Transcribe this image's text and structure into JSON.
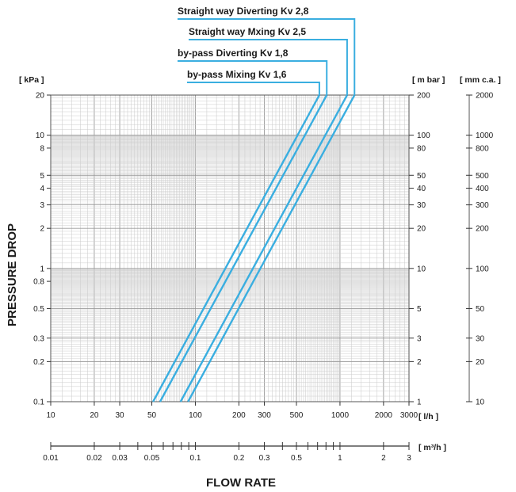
{
  "chart_data": {
    "type": "line",
    "xlabel": "FLOW RATE",
    "ylabel": "PRESSURE DROP",
    "x_scale": "log",
    "y_scale": "log",
    "xlim": [
      10,
      3000
    ],
    "ylim": [
      0.1,
      20
    ],
    "grid": true,
    "legend": "top-right",
    "units": {
      "left_axis": "[ kPa ]",
      "right_axis_1": "[ m bar ]",
      "right_axis_2": "[ mm c.a. ]",
      "x_axis_primary": "[ l/h ]",
      "x_axis_secondary": "[ m³/h ]"
    },
    "left_ticks": [
      "20",
      "10",
      "8",
      "5",
      "4",
      "3",
      "2",
      "1",
      "0.8",
      "0.5",
      "0.3",
      "0.2",
      "0.1"
    ],
    "left_tick_values": [
      20,
      10,
      8,
      5,
      4,
      3,
      2,
      1,
      0.8,
      0.5,
      0.3,
      0.2,
      0.1
    ],
    "mbar_ticks": [
      "200",
      "100",
      "80",
      "50",
      "40",
      "30",
      "20",
      "10",
      "5",
      "3",
      "2",
      "1"
    ],
    "mbar_tick_values": [
      200,
      100,
      80,
      50,
      40,
      30,
      20,
      10,
      5,
      3,
      2,
      1
    ],
    "mmca_ticks": [
      "2000",
      "1000",
      "800",
      "500",
      "400",
      "300",
      "200",
      "100",
      "50",
      "30",
      "20",
      "10"
    ],
    "mmca_tick_values": [
      2000,
      1000,
      800,
      500,
      400,
      300,
      200,
      100,
      50,
      30,
      20,
      10
    ],
    "lh_ticks": [
      "10",
      "20",
      "30",
      "50",
      "100",
      "200",
      "300",
      "500",
      "1000",
      "2000",
      "3000"
    ],
    "lh_tick_values": [
      10,
      20,
      30,
      50,
      100,
      200,
      300,
      500,
      1000,
      2000,
      3000
    ],
    "m3h_ticks": [
      "0.01",
      "0.02",
      "0.03",
      "0.05",
      "0.1",
      "0.2",
      "0.3",
      "0.5",
      "1",
      "2",
      "3"
    ],
    "m3h_tick_values": [
      0.01,
      0.02,
      0.03,
      0.05,
      0.1,
      0.2,
      0.3,
      0.5,
      1,
      2,
      3
    ],
    "series": [
      {
        "name": "Straight way Diverting Kv 2,8",
        "x": [
          89,
          1260
        ],
        "y": [
          0.1,
          20
        ],
        "color": "#3aaee0"
      },
      {
        "name": "Straight way Mxing Kv 2,5",
        "x": [
          79,
          1120
        ],
        "y": [
          0.1,
          20
        ],
        "color": "#3aaee0"
      },
      {
        "name": "by-pass Diverting Kv 1,8",
        "x": [
          57,
          810
        ],
        "y": [
          0.1,
          20
        ],
        "color": "#3aaee0"
      },
      {
        "name": "by-pass Mixing Kv 1,6",
        "x": [
          51,
          720
        ],
        "y": [
          0.1,
          20
        ],
        "color": "#3aaee0"
      }
    ]
  }
}
